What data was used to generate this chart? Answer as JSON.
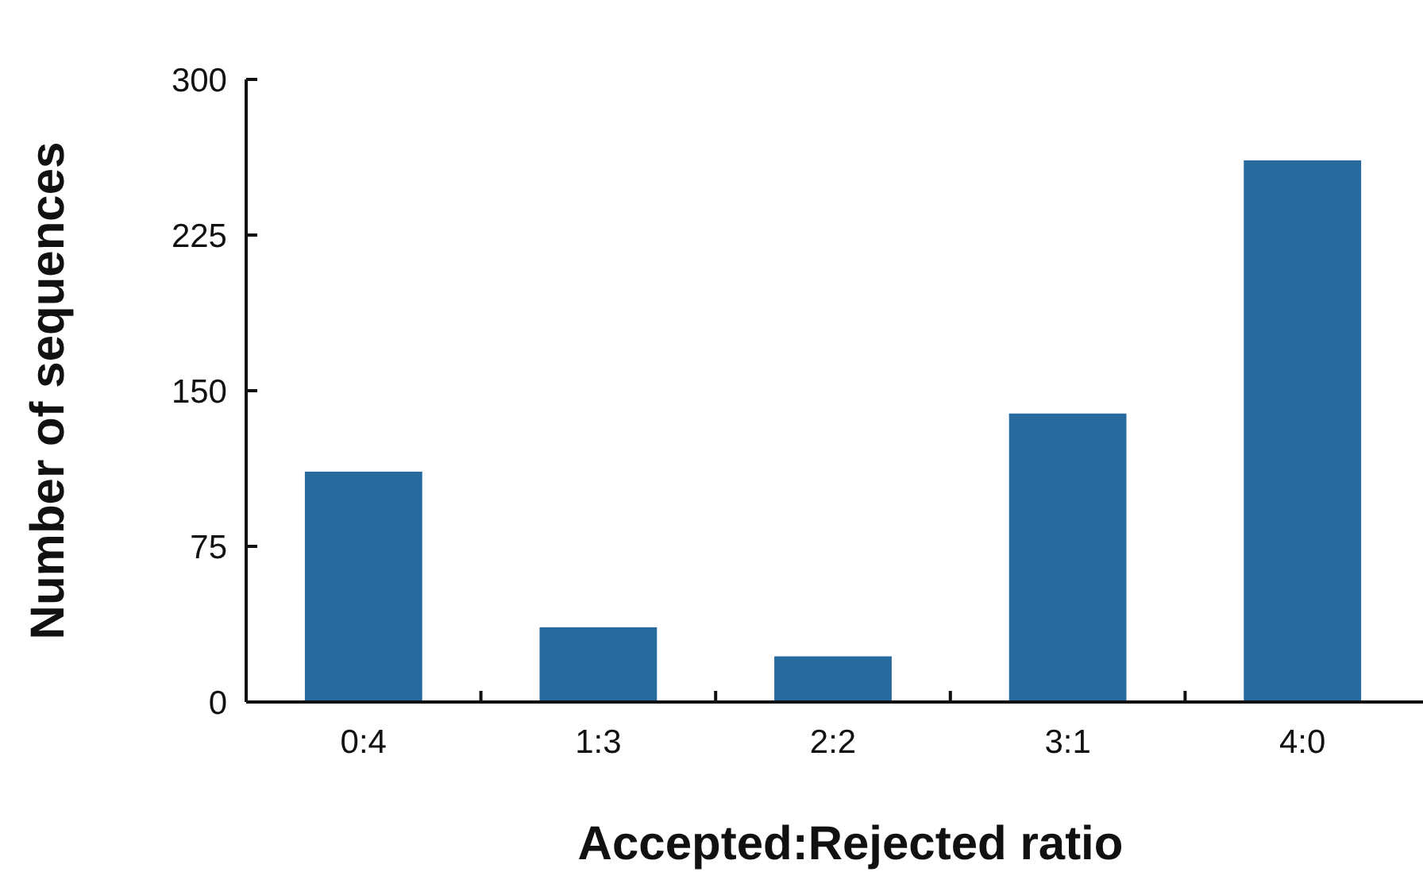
{
  "chart_data": {
    "type": "bar",
    "xlabel": "Accepted:Rejected ratio",
    "ylabel": "Number of sequences",
    "categories": [
      "0:4",
      "1:3",
      "2:2",
      "3:1",
      "4:0"
    ],
    "values": [
      111,
      36,
      22,
      139,
      261
    ],
    "color": "#266a9e",
    "ylim": [
      0,
      300
    ],
    "yticks": [
      0,
      75,
      150,
      225,
      300
    ],
    "grid": false
  }
}
